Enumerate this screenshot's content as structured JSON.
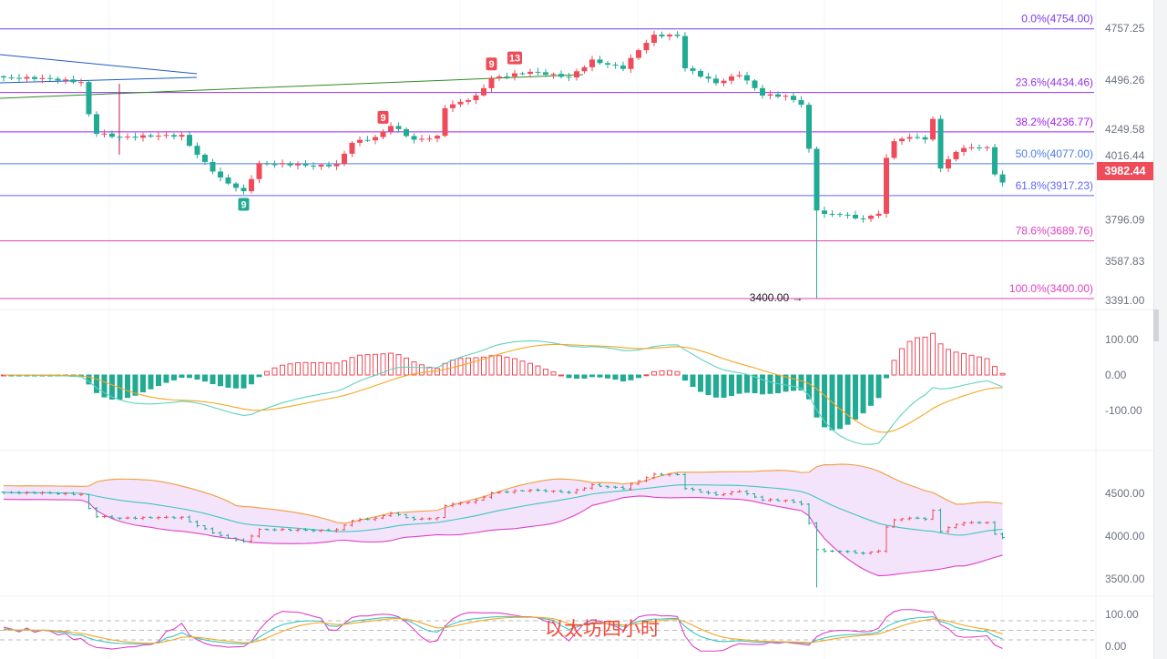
{
  "chart_data": {
    "type": "candlestick",
    "title": "以太坊四小时",
    "colors": {
      "up": "#ef4b5a",
      "down": "#22ab94",
      "dif": "#5fd3c0",
      "dea": "#f5a623",
      "boll_upper": "#f39c3c",
      "boll_lower": "#e040c8",
      "boll_mid": "#3ec6c0",
      "boll_fill": "#f3e3fb"
    },
    "close_keypoints": [
      [
        0,
        4510
      ],
      [
        5,
        4500
      ],
      [
        10,
        4487
      ],
      [
        11,
        4327
      ],
      [
        12,
        4236
      ],
      [
        15,
        4213
      ],
      [
        23,
        4213
      ],
      [
        25,
        4122
      ],
      [
        28,
        4008
      ],
      [
        31,
        3939
      ],
      [
        33,
        4076
      ],
      [
        40,
        4063
      ],
      [
        43,
        4075
      ],
      [
        45,
        4190
      ],
      [
        48,
        4210
      ],
      [
        50,
        4268
      ],
      [
        53,
        4190
      ],
      [
        56,
        4210
      ],
      [
        57,
        4360
      ],
      [
        61,
        4420
      ],
      [
        63,
        4510
      ],
      [
        68,
        4533
      ],
      [
        73,
        4510
      ],
      [
        76,
        4600
      ],
      [
        80,
        4560
      ],
      [
        82,
        4647
      ],
      [
        84,
        4716
      ],
      [
        87,
        4716
      ],
      [
        88,
        4556
      ],
      [
        92,
        4487
      ],
      [
        95,
        4530
      ],
      [
        98,
        4420
      ],
      [
        101,
        4410
      ],
      [
        103,
        4373
      ],
      [
        104,
        4145
      ],
      [
        105,
        3847
      ],
      [
        106,
        3825
      ],
      [
        108,
        3830
      ],
      [
        111,
        3802
      ],
      [
        113,
        3830
      ],
      [
        114,
        4099
      ],
      [
        115,
        4190
      ],
      [
        118,
        4210
      ],
      [
        119,
        4190
      ],
      [
        120,
        4304
      ],
      [
        121,
        4053
      ],
      [
        123,
        4145
      ],
      [
        125,
        4167
      ],
      [
        127,
        4160
      ],
      [
        128,
        4030
      ],
      [
        129,
        3982.44
      ]
    ],
    "main_axis": {
      "ylim": [
        3391.0,
        4757.25
      ],
      "ticks": [
        "4757.25",
        "4496.26",
        "4249.58",
        "4016.44",
        "3796.09",
        "3587.83",
        "3391.00"
      ],
      "tick_values": [
        4757.25,
        4496.26,
        4249.58,
        4016.44,
        3796.09,
        3587.83,
        3391.0
      ]
    },
    "last_price": "3982.44",
    "fib_levels": [
      {
        "label": "0.0%(4754.00)",
        "value": 4754.0,
        "color": "#7c3aed"
      },
      {
        "label": "23.6%(4434.46)",
        "value": 4434.46,
        "color": "#9333ea"
      },
      {
        "label": "38.2%(4236.77)",
        "value": 4236.77,
        "color": "#a020f0"
      },
      {
        "label": "50.0%(4077.00)",
        "value": 4077.0,
        "color": "#4a7fe0"
      },
      {
        "label": "61.8%(3917.23)",
        "value": 3917.23,
        "color": "#6366f1"
      },
      {
        "label": "78.6%(3689.76)",
        "value": 3689.76,
        "color": "#e040c0"
      },
      {
        "label": "100.0%(3400.00)",
        "value": 3400.0,
        "color": "#e040c0"
      }
    ],
    "low_annotation": "3400.00",
    "low_index": 105,
    "td_markers": [
      {
        "index": 31,
        "label": "9",
        "type": "down"
      },
      {
        "index": 49,
        "label": "9",
        "type": "up"
      },
      {
        "index": 63,
        "label": "9",
        "type": "up"
      },
      {
        "index": 66,
        "label": "13",
        "type": "up"
      }
    ],
    "macd_axis": {
      "ticks": [
        "100.00",
        "0.00",
        "-100.00"
      ],
      "tick_values": [
        100,
        0,
        -100
      ]
    },
    "boll_axis": {
      "ticks": [
        "4500.00",
        "4000.00",
        "3500.00"
      ],
      "tick_values": [
        4500,
        4000,
        3500
      ]
    },
    "kdj_axis": {
      "ticks": [
        "100.00",
        "0.00"
      ],
      "tick_values": [
        100,
        0
      ]
    }
  }
}
